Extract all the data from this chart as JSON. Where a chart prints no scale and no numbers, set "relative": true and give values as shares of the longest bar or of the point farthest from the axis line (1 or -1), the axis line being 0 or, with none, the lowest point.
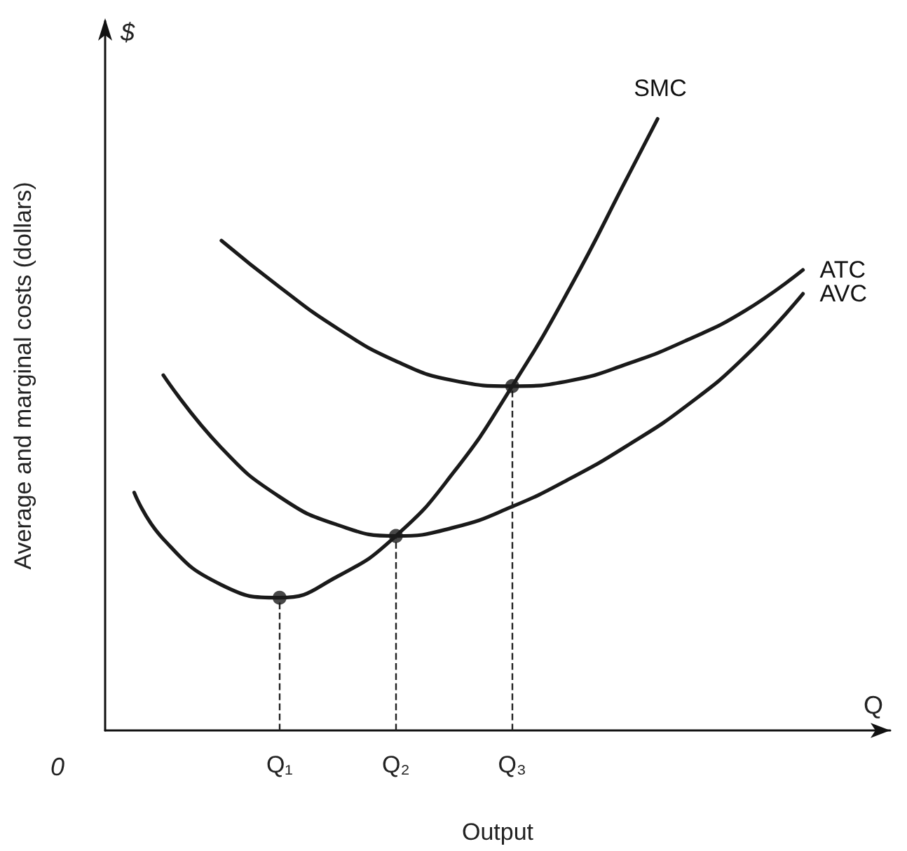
{
  "chart_data": {
    "type": "line",
    "relative": true,
    "xlabel": "Output",
    "ylabel": "Average and marginal costs (dollars)",
    "categories": [
      null,
      null,
      null,
      null,
      null,
      null,
      "Q₁",
      null,
      null,
      null,
      "Q₂",
      null,
      null,
      null,
      "Q₃",
      null,
      null,
      null,
      null,
      null,
      null,
      null,
      null,
      null,
      null,
      null,
      null,
      null
    ],
    "series": [
      {
        "name": "SMC",
        "color": "#1a1a1a",
        "values": [
          null,
          0.389,
          0.313,
          null,
          0.238,
          null,
          0.217,
          null,
          0.252,
          null,
          0.318,
          null,
          0.423,
          null,
          0.563,
          null,
          0.725,
          null,
          0.908,
          1,
          null,
          null,
          null,
          null,
          null,
          null,
          null,
          null
        ]
      },
      {
        "name": "AVC",
        "color": "#1a1a1a",
        "values": [
          null,
          null,
          0.581,
          null,
          0.462,
          null,
          0.382,
          null,
          0.336,
          null,
          0.318,
          null,
          0.332,
          null,
          0.366,
          null,
          0.412,
          null,
          0.467,
          null,
          0.531,
          null,
          0.611,
          null,
          0.714,
          null,
          null,
          null
        ]
      },
      {
        "name": "ATC",
        "color": "#1a1a1a",
        "values": [
          null,
          null,
          null,
          null,
          0.801,
          null,
          0.725,
          null,
          0.657,
          null,
          0.604,
          null,
          0.572,
          null,
          0.563,
          null,
          0.572,
          null,
          0.6,
          null,
          0.638,
          null,
          0.686,
          null,
          0.753,
          null,
          null,
          null
        ]
      },
      {
        "type": "scatter",
        "marker": "circle",
        "color": "#1a1a1a",
        "x": [
          "Q₁",
          "Q₂",
          "Q₃"
        ],
        "values": [
          0.217,
          0.318,
          0.563
        ]
      }
    ],
    "ref_lines": [
      {
        "axis": "x",
        "value": "Q₁",
        "line_style": "dashed"
      },
      {
        "axis": "x",
        "value": "Q₂",
        "line_style": "dashed"
      },
      {
        "axis": "x",
        "value": "Q₃",
        "line_style": "dashed"
      }
    ],
    "annotations": [
      "$",
      "Q",
      "0"
    ],
    "marker": "none",
    "line_style": "solid",
    "grid": false,
    "legend": false
  }
}
